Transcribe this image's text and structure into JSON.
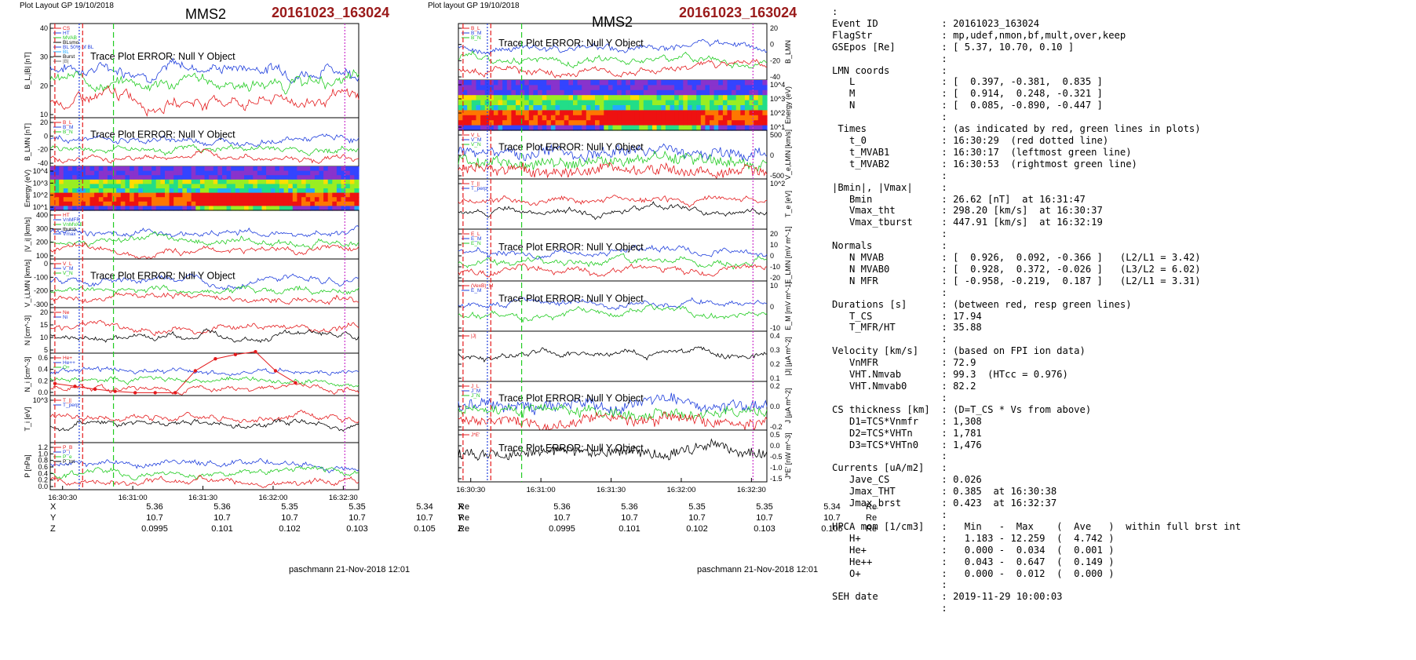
{
  "colors": {
    "red": "#e41a1c",
    "green": "#22cc22",
    "blue": "#1f3fdd",
    "black": "#000000",
    "gray": "#666666",
    "magenta": "#cc33cc",
    "title_red": "#9a1a1a"
  },
  "left": {
    "header": "Plot Layout GP 19/10/2018",
    "sat": "MMS2",
    "event": "20161023_163024",
    "footer": "paschmann 21-Nov-2018 12:01",
    "time_ticks": [
      "16:30:30",
      "16:31:00",
      "16:31:30",
      "16:32:00",
      "16:32:30"
    ],
    "pos": {
      "rows": [
        {
          "label": "X",
          "values": [
            "5.36",
            "5.36",
            "5.35",
            "5.35",
            "5.34"
          ],
          "unit": "Re"
        },
        {
          "label": "Y",
          "values": [
            "10.7",
            "10.7",
            "10.7",
            "10.7",
            "10.7"
          ],
          "unit": "Re"
        },
        {
          "label": "Z",
          "values": [
            "0.0995",
            "0.101",
            "0.102",
            "0.103",
            "0.105"
          ],
          "unit": "Re"
        }
      ]
    },
    "panels": [
      {
        "ylabel": "B_L,|B| [nT]",
        "ticks": [
          "40",
          "30",
          "20",
          "10"
        ],
        "error": "Trace Plot ERROR: Null Y Object",
        "legend": [
          "CS",
          "HT",
          "MVAB",
          "BLsmo",
          "BL 50% of BL",
          "BL",
          "Burst",
          "|B|"
        ]
      },
      {
        "ylabel": "B_LMN [nT]",
        "ticks": [
          "20",
          "0",
          "-20",
          "-40"
        ],
        "error": "Trace Plot ERROR: Null Y Object",
        "legend": [
          "B_L",
          "B_M",
          "B_N"
        ]
      },
      {
        "ylabel": "Energy (eV)",
        "ticks": [
          "10^4",
          "10^3",
          "10^2",
          "10^1"
        ]
      },
      {
        "ylabel": "|V_i| [km/s]",
        "ticks": [
          "400",
          "300",
          "200",
          "100"
        ],
        "legend": [
          "HT",
          "VnMFR",
          "VnMVAB",
          "tburst",
          "Vmax"
        ]
      },
      {
        "ylabel": "V_i,LMN [km/s]",
        "ticks": [
          "0",
          "-100",
          "-200",
          "-300"
        ],
        "error": "Trace Plot ERROR: Null Y Object",
        "legend": [
          "V_L",
          "V_M",
          "V_N"
        ]
      },
      {
        "ylabel": "N [cm^-3]",
        "ticks": [
          "20",
          "15",
          "10",
          "5"
        ],
        "legend": [
          "Ne",
          "Ni"
        ]
      },
      {
        "ylabel": "N_i [cm^-3]",
        "ticks": [
          "0.6",
          "0.4",
          "0.2",
          "0.0"
        ],
        "legend": [
          "He+",
          "He++",
          "O+"
        ]
      },
      {
        "ylabel": "T_i [eV]",
        "ticks": [
          "10^3"
        ],
        "legend": [
          "T_||",
          "T_perp"
        ]
      },
      {
        "ylabel": "P [nPa]",
        "ticks": [
          "1.2",
          "1.0",
          "0.8",
          "0.6",
          "0.4",
          "0.2",
          "0.0"
        ],
        "legend": [
          "P_B",
          "P_i",
          "P_e",
          "P_tot"
        ]
      }
    ]
  },
  "middle": {
    "header": "Plot layout GP 19/10/2018",
    "sat": "MMS2",
    "event": "20161023_163024",
    "footer": "paschmann 21-Nov-2018 12:01",
    "time_ticks": [
      "16:30:30",
      "16:31:00",
      "16:31:30",
      "16:32:00",
      "16:32:30"
    ],
    "pos": {
      "rows": [
        {
          "label": "X",
          "values": [
            "5.36",
            "5.36",
            "5.35",
            "5.35",
            "5.34"
          ],
          "unit": "Re"
        },
        {
          "label": "Y",
          "values": [
            "10.7",
            "10.7",
            "10.7",
            "10.7",
            "10.7"
          ],
          "unit": "Re"
        },
        {
          "label": "Z",
          "values": [
            "0.0995",
            "0.101",
            "0.102",
            "0.103",
            "0.105"
          ],
          "unit": "Re"
        }
      ]
    },
    "panels": [
      {
        "ylabel": "B_LMN",
        "ticks": [
          "20",
          "0",
          "-20",
          "-40"
        ],
        "error": "Trace Plot ERROR: Null Y Object",
        "legend": [
          "B_L",
          "B_M",
          "B_N"
        ]
      },
      {
        "ylabel": "Energy (eV)",
        "ticks": [
          "10^4",
          "10^3",
          "10^2",
          "10^1"
        ]
      },
      {
        "ylabel": "V_e,LMN [km/s]",
        "ticks": [
          "500",
          "0",
          "-500"
        ],
        "error": "Trace Plot ERROR: Null Y Object",
        "legend": [
          "V_L",
          "V_M",
          "V_N"
        ]
      },
      {
        "ylabel": "T_e [eV]",
        "ticks": [
          "10^2"
        ],
        "legend": [
          "T_||",
          "T_perp"
        ]
      },
      {
        "ylabel": "E_LMN [mV m^-1]",
        "ticks": [
          "20",
          "10",
          "0",
          "-10",
          "-20"
        ],
        "error": "Trace Plot ERROR: Null Y Object",
        "legend": [
          "E_L",
          "E_M",
          "E_N"
        ]
      },
      {
        "ylabel": "E_M [mV m^-1]",
        "ticks": [
          "10",
          "0",
          "-10"
        ],
        "error": "Trace Plot ERROR: Null Y Object",
        "legend": [
          "(VexB)_M",
          "E_M"
        ]
      },
      {
        "ylabel": "|J| [µA m^-2]",
        "ticks": [
          "0.4",
          "0.3",
          "0.2",
          "0.1"
        ],
        "legend": [
          "|J|"
        ]
      },
      {
        "ylabel": "J [µA m^-2]",
        "ticks": [
          "0.2",
          "0.0",
          "-0.2"
        ],
        "error": "Trace Plot ERROR: Null Y Object",
        "legend": [
          "J_L",
          "J_M",
          "J_N"
        ]
      },
      {
        "ylabel": "J*E' [nW m^-3]",
        "ticks": [
          "0.5",
          "0.0",
          "-0.5",
          "-1.0",
          "-1.5"
        ],
        "error": "Trace Plot ERROR: Null Y Object",
        "legend": [
          "J*E'"
        ]
      }
    ]
  },
  "summary": [
    ":",
    "Event ID           : 20161023_163024",
    "FlagStr            : mp,udef,nmon,bf,mult,over,keep",
    "GSEpos [Re]        : [ 5.37, 10.70, 0.10 ]",
    "                   :",
    "LMN coords         :",
    "   L               : [  0.397, -0.381,  0.835 ]",
    "   M               : [  0.914,  0.248, -0.321 ]",
    "   N               : [  0.085, -0.890, -0.447 ]",
    "                   :",
    " Times             : (as indicated by red, green lines in plots)",
    "   t_0             : 16:30:29  (red dotted line)",
    "   t_MVAB1         : 16:30:17  (leftmost green line)",
    "   t_MVAB2         : 16:30:53  (rightmost green line)",
    "                   :",
    "|Bmin|, |Vmax|     :",
    "   Bmin            : 26.62 [nT]  at 16:31:47",
    "   Vmax_tht        : 298.20 [km/s]  at 16:30:37",
    "   Vmax_tburst     : 447.91 [km/s]  at 16:32:19",
    "                   :",
    "Normals            :",
    "   N MVAB          : [  0.926,  0.092, -0.366 ]   (L2/L1 = 3.42)",
    "   N MVAB0         : [  0.928,  0.372, -0.026 ]   (L3/L2 = 6.02)",
    "   N MFR           : [ -0.958, -0.219,  0.187 ]   (L2/L1 = 3.31)",
    "                   :",
    "Durations [s]      : (between red, resp green lines)",
    "   T_CS            : 17.94",
    "   T_MFR/HT        : 35.88",
    "                   :",
    "Velocity [km/s]    : (based on FPI ion data)",
    "   VnMFR           : 72.9",
    "   VHT.Nmvab       : 99.3  (HTcc = 0.976)",
    "   VHT.Nmvab0      : 82.2",
    "                   :",
    "CS thickness [km]  : (D=T_CS * Vs from above)",
    "   D1=TCS*Vnmfr    : 1,308",
    "   D2=TCS*VHTn     : 1,781",
    "   D3=TCS*VHTn0    : 1,476",
    "                   :",
    "Currents [uA/m2]   :",
    "   Jave_CS         : 0.026",
    "   Jmax_THT        : 0.385  at 16:30:38",
    "   Jmax_brst       : 0.423  at 16:32:37",
    "                   :",
    "HPCA mom [1/cm3]   :   Min   -  Max    (  Ave   )  within full brst int",
    "   H+              :   1.183 - 12.259  (  4.742 )",
    "   He+             :   0.000 -  0.034  (  0.001 )",
    "   He++            :   0.043 -  0.647  (  0.149 )",
    "   O+              :   0.000 -  0.012  (  0.000 )",
    "                   :",
    "SEH date           : 2019-11-29 10:00:03",
    "                   :"
  ],
  "chart_data": [
    {
      "type": "line",
      "title": "MMS2",
      "panel": "N_i HPCA (left stack)",
      "ylabel": "N_i [cm^-3]",
      "ylim": [
        0,
        0.6
      ],
      "series": [
        {
          "name": "He++",
          "x": [
            "16:30:22",
            "16:30:30",
            "16:30:40",
            "16:30:50",
            "16:31:00",
            "16:31:10",
            "16:31:20",
            "16:31:30",
            "16:31:40",
            "16:31:50",
            "16:32:00",
            "16:32:10",
            "16:32:20"
          ],
          "values": [
            0.17,
            0.13,
            0.09,
            0.06,
            0.04,
            0.04,
            0.04,
            0.35,
            0.52,
            0.58,
            0.62,
            0.35,
            0.18
          ]
        },
        {
          "name": "He+",
          "x": [
            "16:30:22",
            "16:32:30"
          ],
          "values": [
            0.0,
            0.0
          ]
        },
        {
          "name": "O+",
          "x": [
            "16:30:22",
            "16:32:30"
          ],
          "values": [
            0.0,
            0.0
          ]
        }
      ]
    },
    {
      "type": "line",
      "panel": "N (left stack)",
      "ylabel": "N [cm^-3]",
      "ylim": [
        0,
        20
      ],
      "series": [
        {
          "name": "Ne",
          "x": [
            "16:30:22",
            "16:30:30",
            "16:30:34",
            "16:30:40",
            "16:31:00",
            "16:31:20",
            "16:31:30",
            "16:31:40",
            "16:31:50",
            "16:32:00",
            "16:32:10",
            "16:32:20",
            "16:32:30",
            "16:32:40"
          ],
          "values": [
            5,
            6,
            11,
            5,
            4,
            5,
            7,
            14,
            18,
            14,
            15,
            13,
            6,
            8
          ]
        },
        {
          "name": "Ni",
          "x": [
            "16:30:22",
            "16:30:30",
            "16:30:34",
            "16:30:40",
            "16:31:00",
            "16:31:20",
            "16:31:30",
            "16:31:40",
            "16:31:50",
            "16:32:00",
            "16:32:10",
            "16:32:20",
            "16:32:30",
            "16:32:40"
          ],
          "values": [
            5,
            6,
            10,
            5,
            4,
            5,
            7,
            13,
            17,
            14,
            15,
            13,
            6,
            8
          ]
        }
      ]
    }
  ]
}
